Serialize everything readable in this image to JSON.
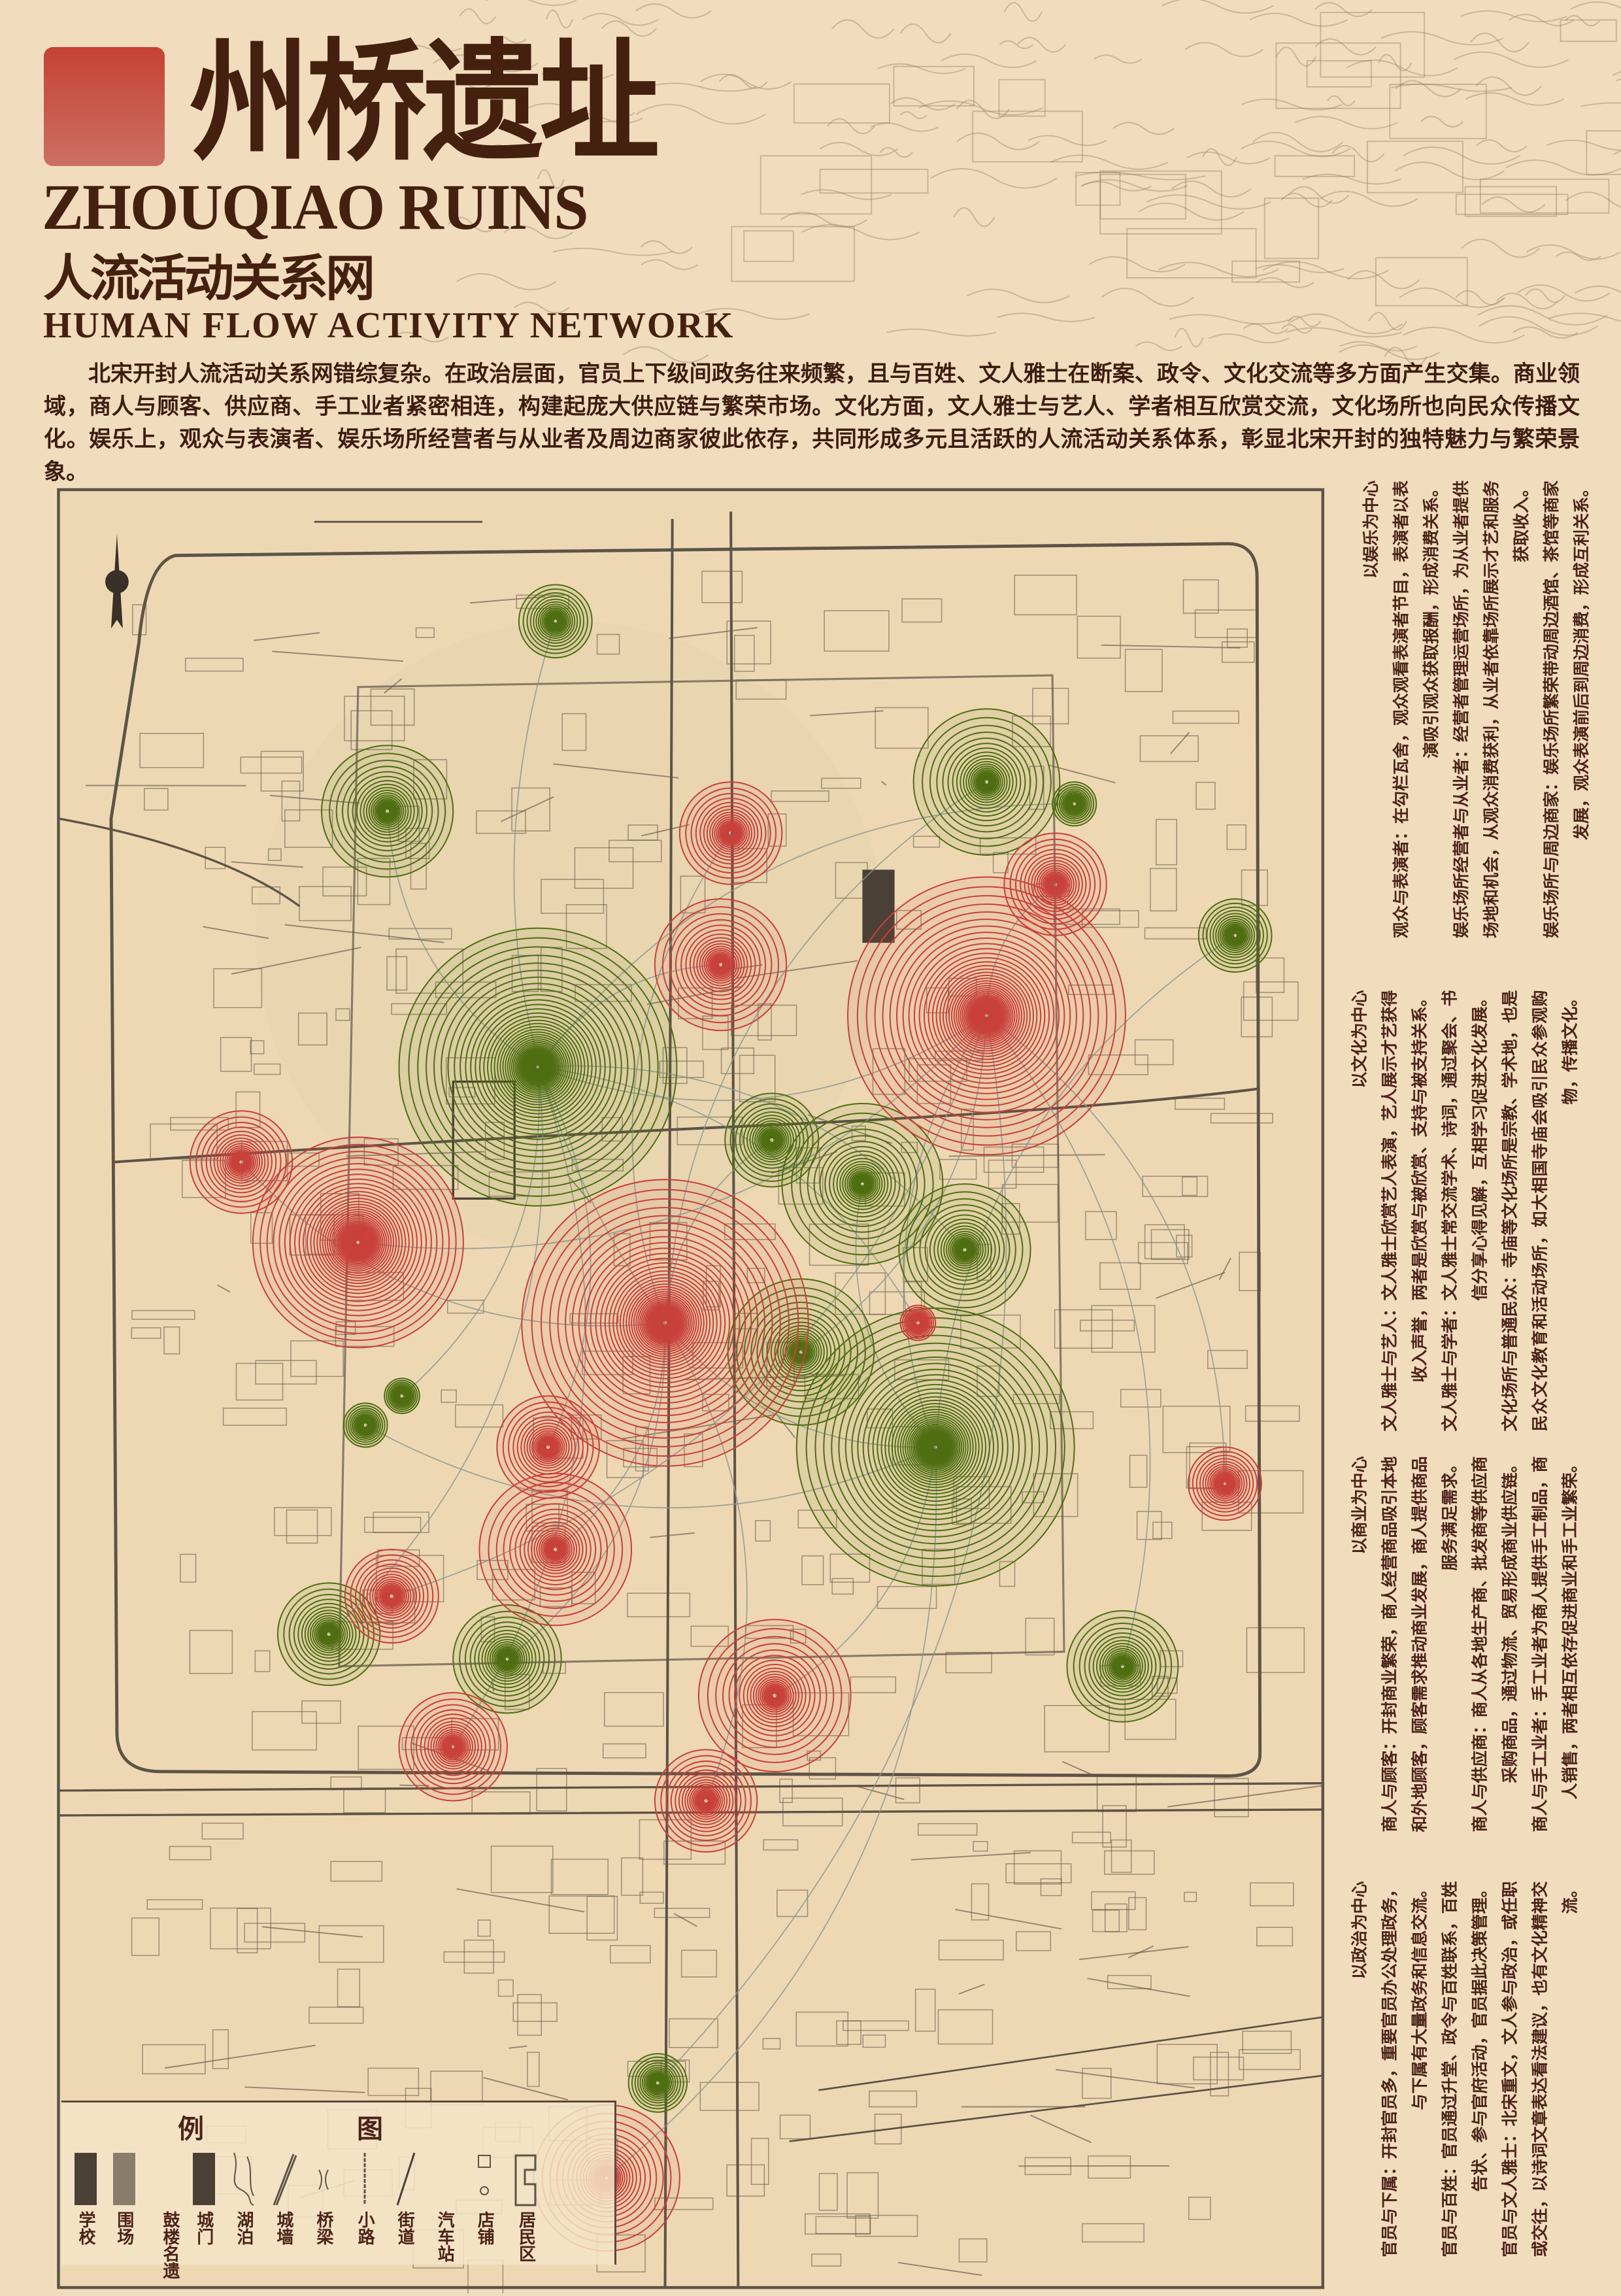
{
  "header": {
    "title_cn": "州桥遗址",
    "title_en": "ZHOUQIAO RUINS",
    "subtitle_cn": "人流活动关系网",
    "subtitle_en": "HUMAN FLOW ACTIVITY NETWORK"
  },
  "intro": "北宋开封人流活动关系网错综复杂。在政治层面，官员上下级间政务往来频繁，且与百姓、文人雅士在断案、政令、文化交流等多方面产生交集。商业领域，商人与顾客、供应商、手工业者紧密相连，构建起庞大供应链与繁荣市场。文化方面，文人雅士与艺人、学者相互欣赏交流，文化场所也向民众传播文化。娱乐上，观众与表演者、娱乐场所经营者与从业者及周边商家彼此依存，共同形成多元且活跃的人流活动关系体系，彰显北宋开封的独特魅力与繁荣景象。",
  "sections": [
    {
      "title": "以娱乐为中心",
      "paragraphs": [
        "观众与表演者：在勾栏瓦舍，观众观看表演者节目，表演者以表演吸引观众获取报酬，形成消费关系。",
        "娱乐场所经营者与从业者：经营者管理运营场所，为从业者提供场地和机会，从观众消费获利，从业者依靠场所展示才艺和服务获取收入。",
        "娱乐场所与周边商家：娱乐场所繁荣带动周边酒馆、茶馆等商家发展，观众表演前后到周边消费，形成互利关系。"
      ]
    },
    {
      "title": "以文化为中心",
      "paragraphs": [
        "文人雅士与艺人：文人雅士欣赏艺人表演，艺人展示才艺获得收入声誉，两者是欣赏与被欣赏、支持与被支持关系。",
        "文人雅士与学者：文人雅士常交流学术、诗词，通过聚会、书信分享心得见解，互相学习促进文化发展。",
        "文化场所与普通民众：寺庙等文化场所是宗教、学术地，也是民众文化教育和活动场所，如大相国寺庙会吸引民众参观购物，传播文化。"
      ]
    },
    {
      "title": "以商业为中心",
      "paragraphs": [
        "商人与顾客：开封商业繁荣，商人经营商品吸引本地和外地顾客，顾客需求推动商业发展，商人提供商品服务满足需求。",
        "商人与供应商：商人从各地生产商、批发商等供应商采购商品，通过物流、贸易形成商业供应链。",
        "商人与手工业者：手工业者为商人提供手工制品，商人销售，两者相互依存促进商业和手工业繁荣。"
      ]
    },
    {
      "title": "以政治为中心",
      "paragraphs": [
        "官员与下属：开封官员多，重要官员办公处理政务，与下属有大量政务和信息交流。",
        "官员与百姓：官员通过升堂、政令与百姓联系，百姓告状、参与官府活动，官员据此决策管理。",
        "官员与文人雅士：北宋重文，文人参与政治，或任职或交往，以诗词文章表达看法建议，也有文化精神交流。"
      ]
    }
  ],
  "legend": {
    "title_left": "例",
    "title_right": "图",
    "items": [
      {
        "label": "学校",
        "icon": "school-block-icon"
      },
      {
        "label": "围场",
        "icon": "enclosure-block-icon"
      },
      {
        "label": "鼓楼名遗",
        "icon": "drum-tower-icon"
      },
      {
        "label": "城门",
        "icon": "city-gate-icon"
      },
      {
        "label": "湖泊",
        "icon": "lake-icon"
      },
      {
        "label": "城墙",
        "icon": "city-wall-icon"
      },
      {
        "label": "桥梁",
        "icon": "bridge-icon"
      },
      {
        "label": "小路",
        "icon": "path-icon"
      },
      {
        "label": "街道",
        "icon": "street-icon"
      },
      {
        "label": "汽车站",
        "icon": "bus-station-icon"
      },
      {
        "label": "店铺",
        "icon": "shop-icon"
      },
      {
        "label": "居民区",
        "icon": "residential-icon"
      }
    ]
  },
  "colors": {
    "background": "#f1dcbd",
    "text": "#4a2418",
    "accent_red": "#c8413a",
    "accent_green": "#4f6e12",
    "map_ink": "#5e5346",
    "network_line": "#8a9690"
  },
  "map_legend_meaning": {
    "red_rings": "accent_red",
    "green_rings": "accent_green"
  }
}
